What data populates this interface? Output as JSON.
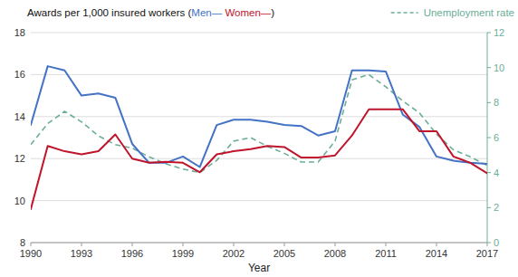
{
  "chart_data": {
    "type": "line",
    "title": "Awards per 1,000 insured workers (Men— Women—)",
    "x_label": "Year",
    "x": [
      1990,
      1991,
      1992,
      1993,
      1994,
      1995,
      1996,
      1997,
      1998,
      1999,
      2000,
      2001,
      2002,
      2003,
      2004,
      2005,
      2006,
      2007,
      2008,
      2009,
      2010,
      2011,
      2012,
      2013,
      2014,
      2015,
      2016,
      2017
    ],
    "series": [
      {
        "name": "Men",
        "color": "#4472C4",
        "line_style": "solid",
        "values": [
          13.6,
          16.4,
          16.2,
          15.0,
          15.1,
          14.9,
          12.7,
          11.8,
          11.8,
          12.1,
          11.6,
          13.6,
          13.85,
          13.85,
          13.75,
          13.6,
          13.55,
          13.1,
          13.3,
          16.2,
          16.2,
          16.15,
          14.1,
          13.5,
          12.1,
          11.9,
          11.8,
          11.75
        ]
      },
      {
        "name": "Women",
        "color": "#C0142C",
        "line_style": "solid",
        "values": [
          9.6,
          12.6,
          12.35,
          12.2,
          12.35,
          13.15,
          12.0,
          11.8,
          11.85,
          11.8,
          11.35,
          12.2,
          12.35,
          12.45,
          12.6,
          12.55,
          12.05,
          12.05,
          12.15,
          13.1,
          14.35,
          14.35,
          14.35,
          13.3,
          13.3,
          12.1,
          11.8,
          11.3
        ]
      },
      {
        "name": "Unemployment rate",
        "color": "#6BAE98",
        "line_style": "dashed",
        "axis": "y2",
        "values": [
          5.6,
          6.8,
          7.5,
          6.9,
          6.1,
          5.6,
          5.4,
          4.9,
          4.5,
          4.2,
          4.0,
          4.7,
          5.8,
          6.0,
          5.5,
          5.1,
          4.6,
          4.6,
          5.8,
          9.3,
          9.6,
          8.9,
          8.1,
          7.4,
          6.2,
          5.3,
          4.9,
          4.4
        ]
      }
    ],
    "xlim": [
      1990,
      2017
    ],
    "xticks": [
      1990,
      1993,
      1996,
      1999,
      2002,
      2005,
      2008,
      2011,
      2014,
      2017
    ],
    "ylim": [
      8,
      18
    ],
    "yticks": [
      8,
      10,
      12,
      14,
      16,
      18
    ],
    "y2lim": [
      0,
      12
    ],
    "y2ticks": [
      0,
      2,
      4,
      6,
      8,
      10,
      12
    ],
    "grid": true
  }
}
